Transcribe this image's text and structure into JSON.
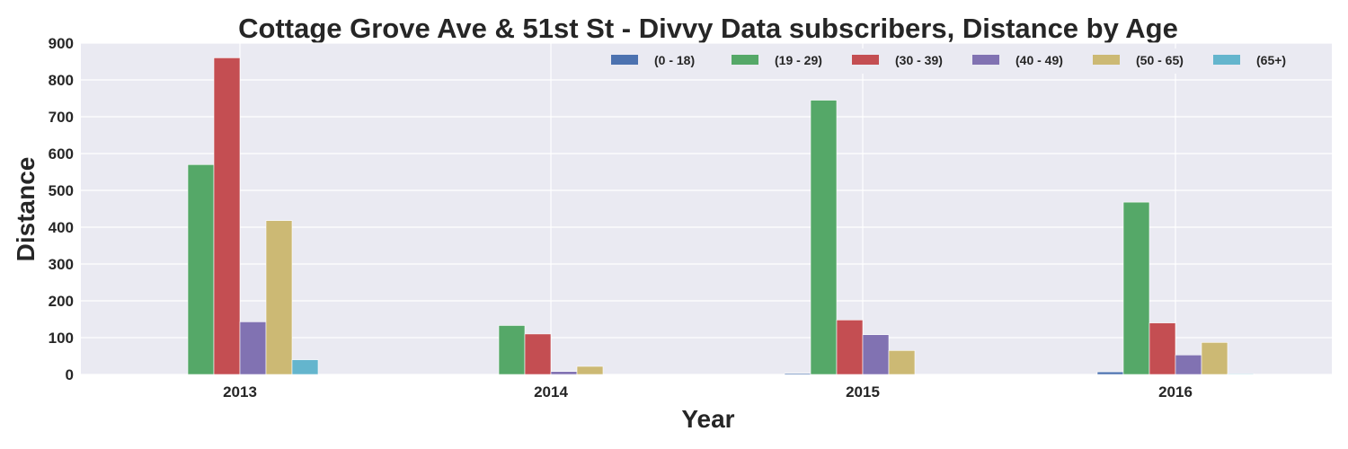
{
  "chart_data": {
    "type": "bar",
    "title": "Cottage Grove Ave & 51st St - Divvy Data subscribers, Distance by Age",
    "xlabel": "Year",
    "ylabel": "Distance",
    "categories": [
      "2013",
      "2014",
      "2015",
      "2016"
    ],
    "ylim": [
      0,
      900
    ],
    "yticks": [
      0,
      100,
      200,
      300,
      400,
      500,
      600,
      700,
      800,
      900
    ],
    "grid": true,
    "legend_position": "top-right",
    "series": [
      {
        "name": "(0 - 18)",
        "color": "#4c72b0",
        "values": [
          0,
          0,
          3,
          7
        ]
      },
      {
        "name": "(19 - 29)",
        "color": "#55a868",
        "values": [
          570,
          133,
          745,
          468
        ]
      },
      {
        "name": "(30 - 39)",
        "color": "#c44e52",
        "values": [
          860,
          110,
          148,
          140
        ]
      },
      {
        "name": "(40 - 49)",
        "color": "#8172b2",
        "values": [
          143,
          8,
          108,
          53
        ]
      },
      {
        "name": "(50 - 65)",
        "color": "#ccb974",
        "values": [
          418,
          22,
          65,
          87
        ]
      },
      {
        "name": "(65+)",
        "color": "#64b5cd",
        "values": [
          40,
          0,
          0,
          2
        ]
      }
    ]
  }
}
